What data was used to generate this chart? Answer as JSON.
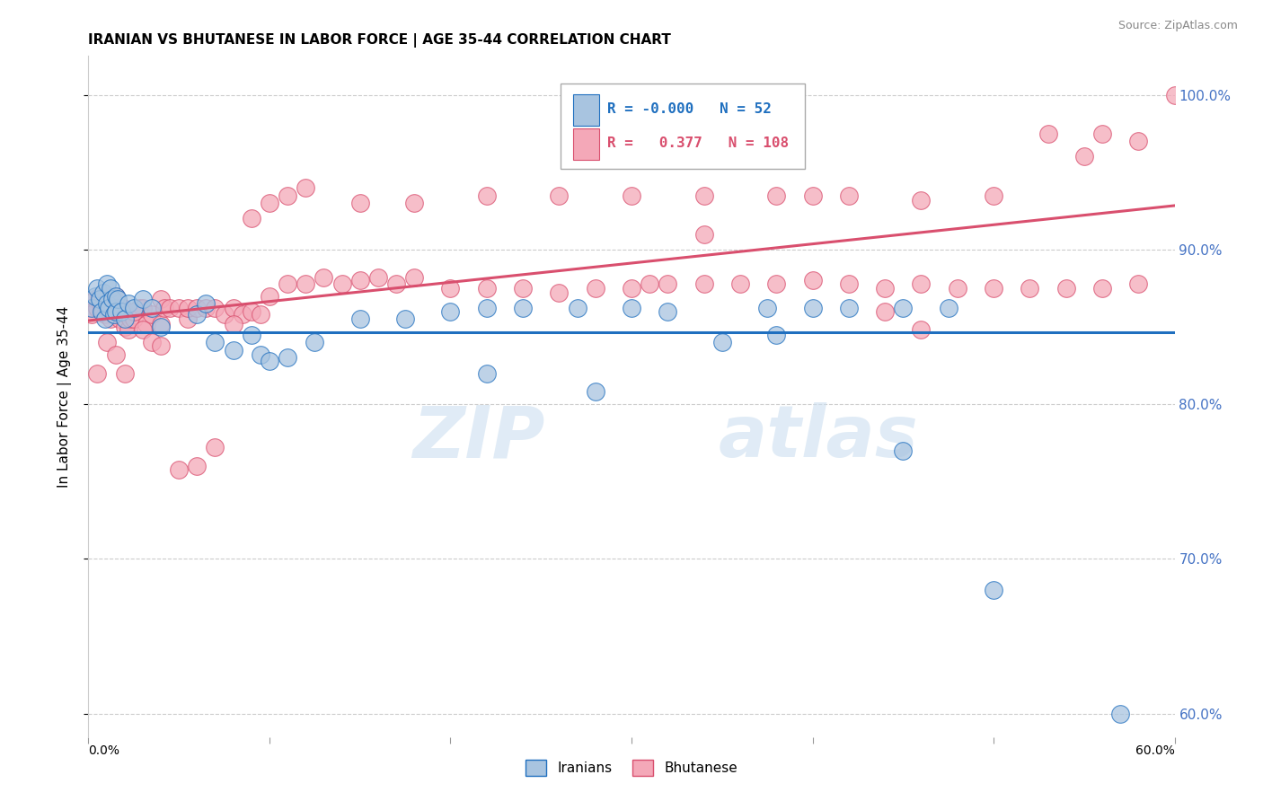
{
  "title": "IRANIAN VS BHUTANESE IN LABOR FORCE | AGE 35-44 CORRELATION CHART",
  "source": "Source: ZipAtlas.com",
  "ylabel": "In Labor Force | Age 35-44",
  "xmin": 0.0,
  "xmax": 0.6,
  "ymin": 0.585,
  "ymax": 1.025,
  "yticks": [
    0.6,
    0.7,
    0.8,
    0.9,
    1.0
  ],
  "ytick_labels": [
    "60.0%",
    "70.0%",
    "80.0%",
    "90.0%",
    "100.0%"
  ],
  "iranian_color": "#a8c4e0",
  "bhutanese_color": "#f4a8b8",
  "iranian_line_color": "#1f6fbf",
  "bhutanese_line_color": "#d94f6e",
  "legend_R_iranian": "-0.000",
  "legend_N_iranian": "52",
  "legend_R_bhutanese": "0.377",
  "legend_N_bhutanese": "108",
  "iranian_x": [
    0.002,
    0.004,
    0.005,
    0.006,
    0.007,
    0.008,
    0.009,
    0.01,
    0.01,
    0.011,
    0.012,
    0.013,
    0.014,
    0.015,
    0.015,
    0.016,
    0.018,
    0.02,
    0.022,
    0.025,
    0.03,
    0.035,
    0.04,
    0.06,
    0.065,
    0.07,
    0.08,
    0.09,
    0.095,
    0.1,
    0.11,
    0.125,
    0.15,
    0.175,
    0.2,
    0.22,
    0.24,
    0.27,
    0.3,
    0.32,
    0.35,
    0.375,
    0.4,
    0.42,
    0.45,
    0.475,
    0.22,
    0.28,
    0.38,
    0.45,
    0.5,
    0.57
  ],
  "iranian_y": [
    0.862,
    0.87,
    0.875,
    0.868,
    0.86,
    0.872,
    0.855,
    0.865,
    0.878,
    0.862,
    0.875,
    0.868,
    0.858,
    0.87,
    0.86,
    0.868,
    0.86,
    0.855,
    0.865,
    0.862,
    0.868,
    0.862,
    0.85,
    0.858,
    0.865,
    0.84,
    0.835,
    0.845,
    0.832,
    0.828,
    0.83,
    0.84,
    0.855,
    0.855,
    0.86,
    0.862,
    0.862,
    0.862,
    0.862,
    0.86,
    0.84,
    0.862,
    0.862,
    0.862,
    0.862,
    0.862,
    0.82,
    0.808,
    0.845,
    0.77,
    0.68,
    0.6
  ],
  "bhutanese_x": [
    0.0,
    0.002,
    0.004,
    0.005,
    0.006,
    0.007,
    0.008,
    0.009,
    0.01,
    0.011,
    0.012,
    0.013,
    0.014,
    0.015,
    0.015,
    0.016,
    0.017,
    0.018,
    0.019,
    0.02,
    0.021,
    0.022,
    0.023,
    0.025,
    0.028,
    0.03,
    0.032,
    0.035,
    0.04,
    0.04,
    0.042,
    0.045,
    0.05,
    0.055,
    0.055,
    0.06,
    0.065,
    0.07,
    0.075,
    0.08,
    0.085,
    0.09,
    0.095,
    0.1,
    0.11,
    0.12,
    0.13,
    0.14,
    0.15,
    0.16,
    0.17,
    0.18,
    0.2,
    0.22,
    0.24,
    0.26,
    0.28,
    0.3,
    0.31,
    0.32,
    0.34,
    0.36,
    0.38,
    0.4,
    0.42,
    0.44,
    0.46,
    0.48,
    0.5,
    0.52,
    0.54,
    0.56,
    0.58,
    0.6,
    0.005,
    0.01,
    0.015,
    0.02,
    0.025,
    0.03,
    0.035,
    0.04,
    0.05,
    0.06,
    0.07,
    0.08,
    0.09,
    0.1,
    0.11,
    0.12,
    0.15,
    0.18,
    0.22,
    0.26,
    0.3,
    0.34,
    0.38,
    0.42,
    0.46,
    0.5,
    0.55,
    0.58,
    0.53,
    0.56,
    0.34,
    0.4,
    0.44,
    0.46
  ],
  "bhutanese_y": [
    0.862,
    0.858,
    0.868,
    0.862,
    0.87,
    0.862,
    0.86,
    0.858,
    0.862,
    0.87,
    0.855,
    0.862,
    0.858,
    0.87,
    0.86,
    0.862,
    0.855,
    0.86,
    0.862,
    0.85,
    0.858,
    0.848,
    0.855,
    0.855,
    0.862,
    0.862,
    0.852,
    0.858,
    0.868,
    0.852,
    0.862,
    0.862,
    0.862,
    0.855,
    0.862,
    0.862,
    0.862,
    0.862,
    0.858,
    0.862,
    0.858,
    0.86,
    0.858,
    0.87,
    0.878,
    0.878,
    0.882,
    0.878,
    0.88,
    0.882,
    0.878,
    0.882,
    0.875,
    0.875,
    0.875,
    0.872,
    0.875,
    0.875,
    0.878,
    0.878,
    0.878,
    0.878,
    0.878,
    0.88,
    0.878,
    0.875,
    0.878,
    0.875,
    0.875,
    0.875,
    0.875,
    0.875,
    0.878,
    1.0,
    0.82,
    0.84,
    0.832,
    0.82,
    0.86,
    0.848,
    0.84,
    0.838,
    0.758,
    0.76,
    0.772,
    0.852,
    0.92,
    0.93,
    0.935,
    0.94,
    0.93,
    0.93,
    0.935,
    0.935,
    0.935,
    0.935,
    0.935,
    0.935,
    0.932,
    0.935,
    0.96,
    0.97,
    0.975,
    0.975,
    0.91,
    0.935,
    0.86,
    0.848
  ]
}
